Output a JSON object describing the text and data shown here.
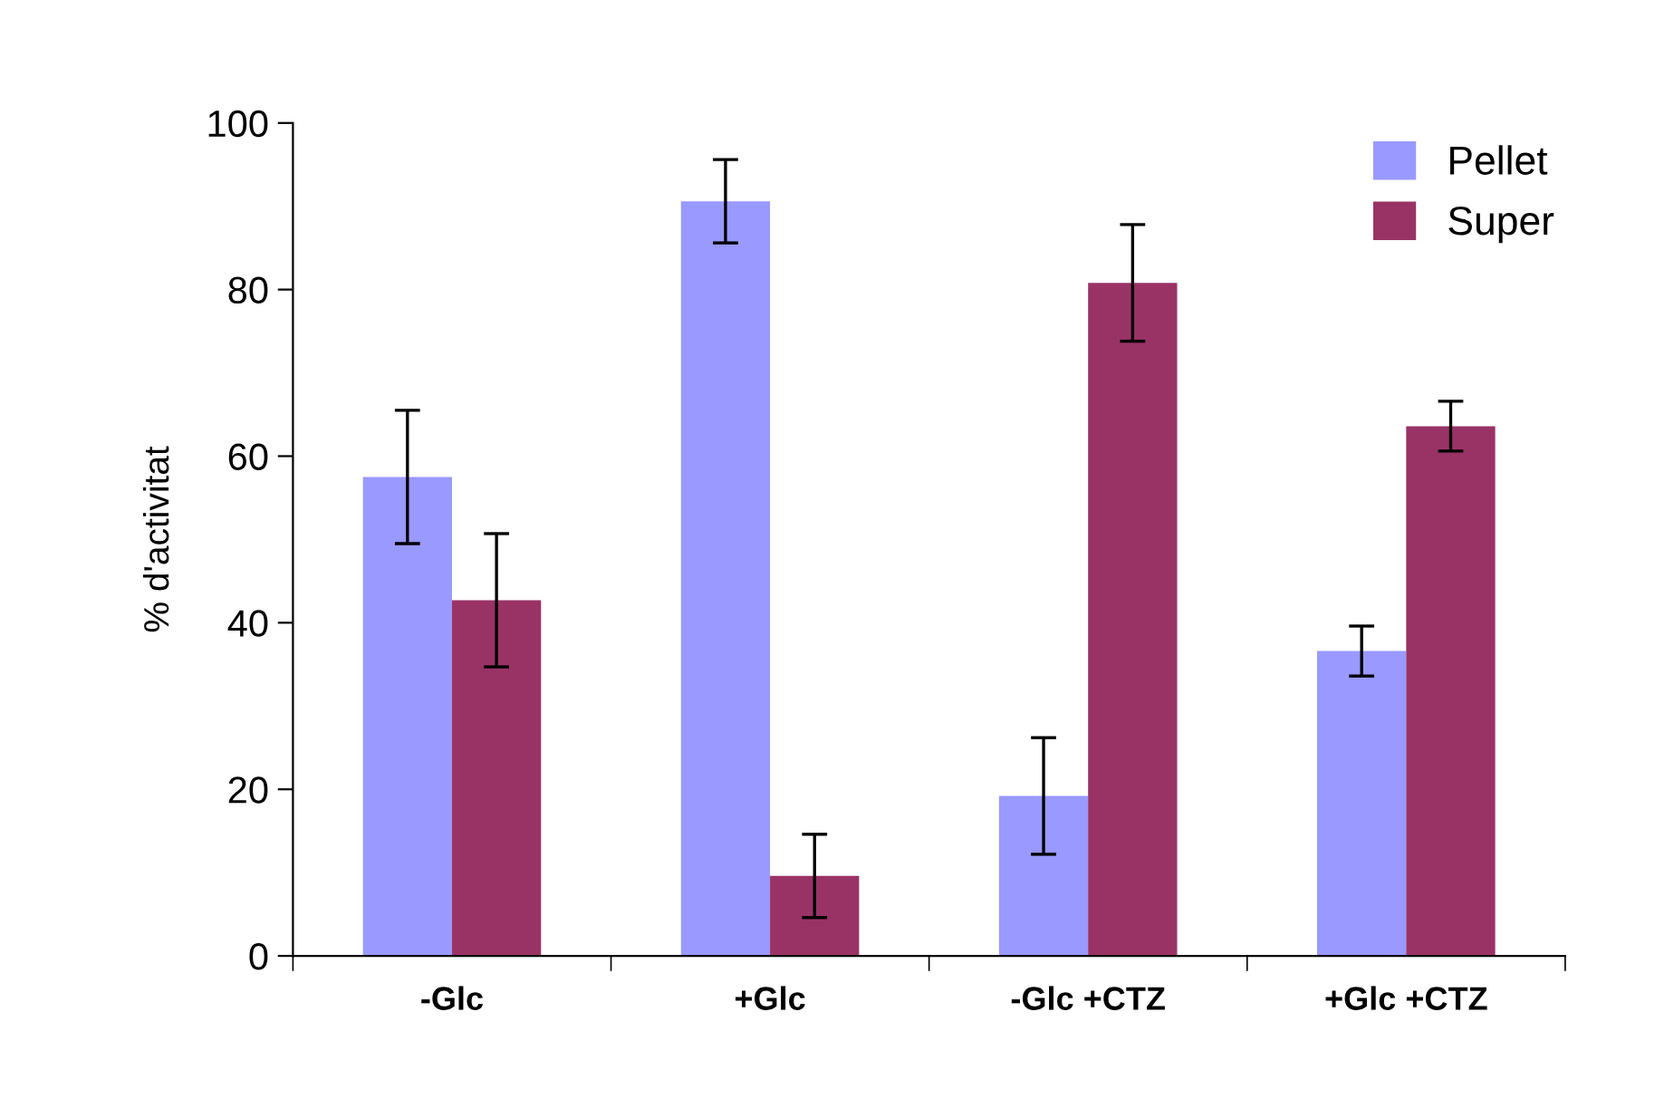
{
  "chart_data": {
    "type": "bar",
    "ylabel": "% d'activitat",
    "categories": [
      "-Glc",
      "+Glc",
      "-Glc +CTZ",
      "+Glc +CTZ"
    ],
    "series": [
      {
        "name": "Pellet",
        "color": "#9999ff",
        "values": [
          57.5,
          90.6,
          19.2,
          36.6
        ],
        "errors": [
          8,
          5,
          7,
          3
        ]
      },
      {
        "name": "Super",
        "color": "#993366",
        "values": [
          42.7,
          9.6,
          80.8,
          63.6
        ],
        "errors": [
          8,
          5,
          7,
          3
        ]
      }
    ],
    "ylim": [
      0,
      100
    ],
    "yticks": [
      0,
      20,
      40,
      60,
      80,
      100
    ],
    "grid": false,
    "legend": "top right"
  }
}
